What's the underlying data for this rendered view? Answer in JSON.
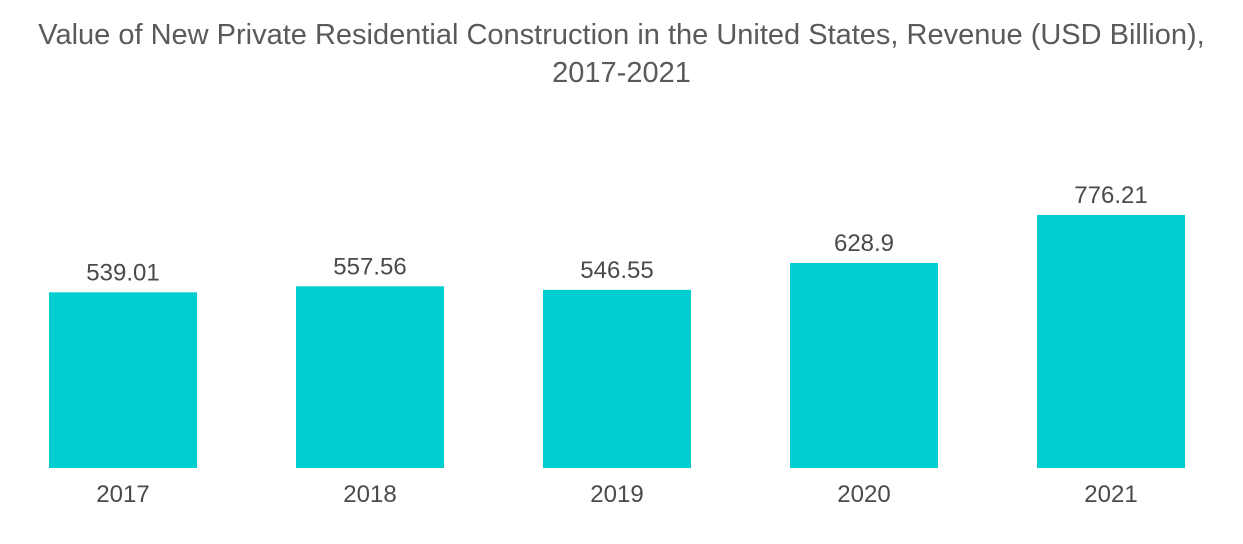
{
  "chart_data": {
    "type": "bar",
    "title_line1": "Value of New Private Residential Construction in the United States, Revenue (USD Billion),",
    "title_line2": "2017-2021",
    "categories": [
      "2017",
      "2018",
      "2019",
      "2020",
      "2021"
    ],
    "values": [
      539.01,
      557.56,
      546.55,
      628.9,
      776.21
    ],
    "value_labels": [
      "539.01",
      "557.56",
      "546.55",
      "628.9",
      "776.21"
    ],
    "xlabel": "",
    "ylabel": "",
    "ylim": [
      0,
      776.21
    ],
    "grid": false,
    "legend": "none",
    "bar_color": "#00CED1"
  }
}
